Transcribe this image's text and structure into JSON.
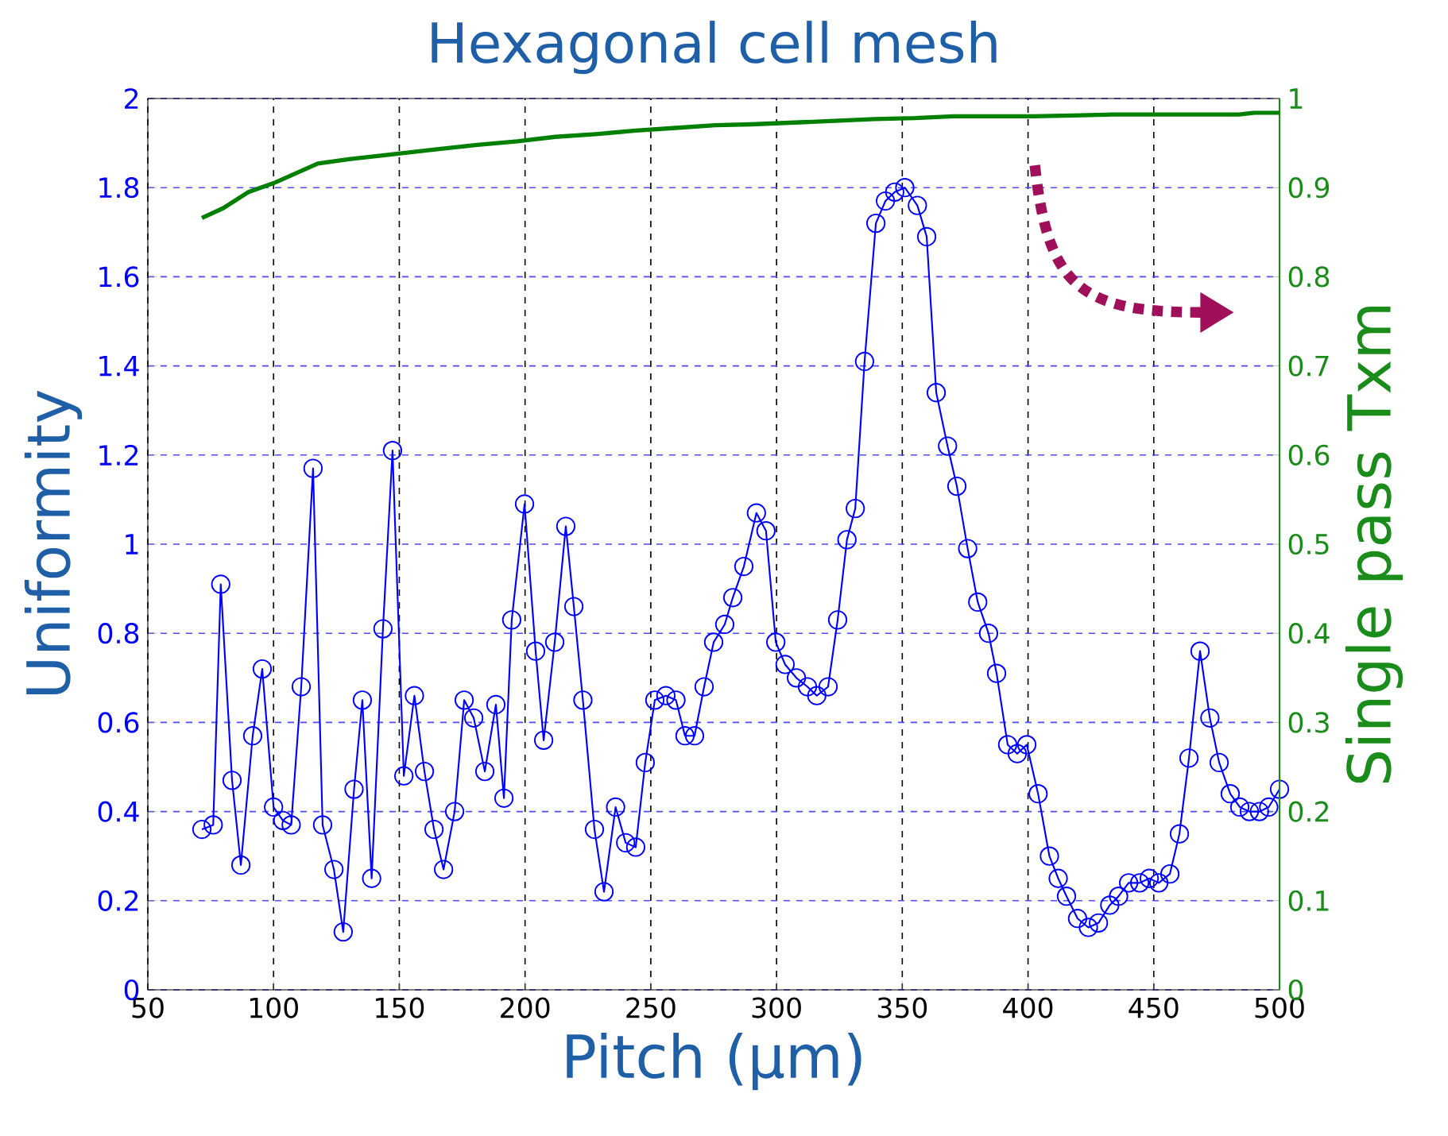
{
  "chart_data": {
    "type": "line",
    "title": "Hexagonal cell mesh",
    "xlabel": "Pitch (µm)",
    "ylabel": "Uniformity",
    "y2label": "Single pass Txm",
    "xlim": [
      50,
      500
    ],
    "xticks": [
      50,
      100,
      150,
      200,
      250,
      300,
      350,
      400,
      450,
      500
    ],
    "ylim": [
      0,
      2
    ],
    "yticks": [
      0,
      0.2,
      0.4,
      0.6,
      0.8,
      1,
      1.2,
      1.4,
      1.6,
      1.8,
      2
    ],
    "y2lim": [
      0,
      1
    ],
    "y2ticks": [
      0,
      0.1,
      0.2,
      0.3,
      0.4,
      0.5,
      0.6,
      0.7,
      0.8,
      0.9,
      1
    ],
    "grid": true,
    "series": [
      {
        "color": "#0000ff",
        "marker": "circle",
        "x": [
          71.5,
          76,
          79,
          83.5,
          87,
          91.7,
          95.5,
          100,
          103.7,
          107,
          111,
          115.7,
          119.5,
          124,
          127.7,
          132,
          135.3,
          139,
          143.5,
          147.3,
          151.8,
          156,
          160,
          163.8,
          167.6,
          172,
          175.8,
          179.6,
          184,
          188.4,
          191.6,
          194.7,
          199.8,
          204.2,
          207.4,
          211.8,
          216.2,
          219.4,
          223,
          227.6,
          231.4,
          236,
          240,
          244,
          247.8,
          251.6,
          256,
          260,
          263.6,
          267.4,
          271.2,
          275,
          279.4,
          282.6,
          287,
          292,
          295.8,
          299.7,
          303.4,
          307.9,
          312.3,
          316,
          320.5,
          324.3,
          328,
          331.3,
          335,
          339.5,
          343.3,
          347,
          351,
          356,
          359.7,
          363.5,
          368,
          371.7,
          376,
          380,
          384.3,
          387.5,
          391.9,
          395.7,
          399.5,
          404,
          408.5,
          412,
          415.3,
          419.7,
          424,
          428,
          432.5,
          436,
          440,
          444.4,
          448.2,
          452,
          456.4,
          460.2,
          464,
          468.4,
          472.3,
          476,
          480.4,
          484.2,
          488,
          492,
          495.7,
          500
        ],
        "values": [
          0.36,
          0.37,
          0.91,
          0.47,
          0.28,
          0.57,
          0.72,
          0.41,
          0.38,
          0.37,
          0.68,
          1.17,
          0.37,
          0.27,
          0.13,
          0.45,
          0.65,
          0.25,
          0.81,
          1.21,
          0.48,
          0.66,
          0.49,
          0.36,
          0.27,
          0.4,
          0.65,
          0.61,
          0.49,
          0.64,
          0.43,
          0.83,
          1.09,
          0.76,
          0.56,
          0.78,
          1.04,
          0.86,
          0.65,
          0.36,
          0.22,
          0.41,
          0.33,
          0.32,
          0.51,
          0.65,
          0.66,
          0.65,
          0.57,
          0.57,
          0.68,
          0.78,
          0.82,
          0.88,
          0.95,
          1.07,
          1.03,
          0.78,
          0.73,
          0.7,
          0.68,
          0.66,
          0.68,
          0.83,
          1.01,
          1.08,
          1.41,
          1.72,
          1.77,
          1.79,
          1.8,
          1.76,
          1.69,
          1.34,
          1.22,
          1.13,
          0.99,
          0.87,
          0.8,
          0.71,
          0.55,
          0.53,
          0.55,
          0.44,
          0.3,
          0.25,
          0.21,
          0.16,
          0.14,
          0.15,
          0.19,
          0.21,
          0.24,
          0.24,
          0.25,
          0.24,
          0.26,
          0.35,
          0.52,
          0.76,
          0.61,
          0.51,
          0.44,
          0.41,
          0.4,
          0.4,
          0.41,
          0.45
        ]
      },
      {
        "color": "#008000",
        "marker": "none",
        "axis": "y2",
        "x": [
          71.5,
          80,
          90,
          100,
          117.6,
          130,
          149,
          165,
          181,
          197,
          212,
          228,
          244,
          260,
          275.6,
          290,
          307,
          323,
          339,
          355,
          370.5,
          386,
          402,
          418,
          434,
          450,
          466,
          484,
          490,
          500
        ],
        "values": [
          0.866,
          0.877,
          0.895,
          0.905,
          0.927,
          0.932,
          0.938,
          0.943,
          0.948,
          0.952,
          0.957,
          0.96,
          0.964,
          0.967,
          0.97,
          0.971,
          0.973,
          0.975,
          0.977,
          0.978,
          0.98,
          0.98,
          0.98,
          0.981,
          0.982,
          0.982,
          0.982,
          0.982,
          0.984,
          0.984
        ]
      }
    ]
  }
}
